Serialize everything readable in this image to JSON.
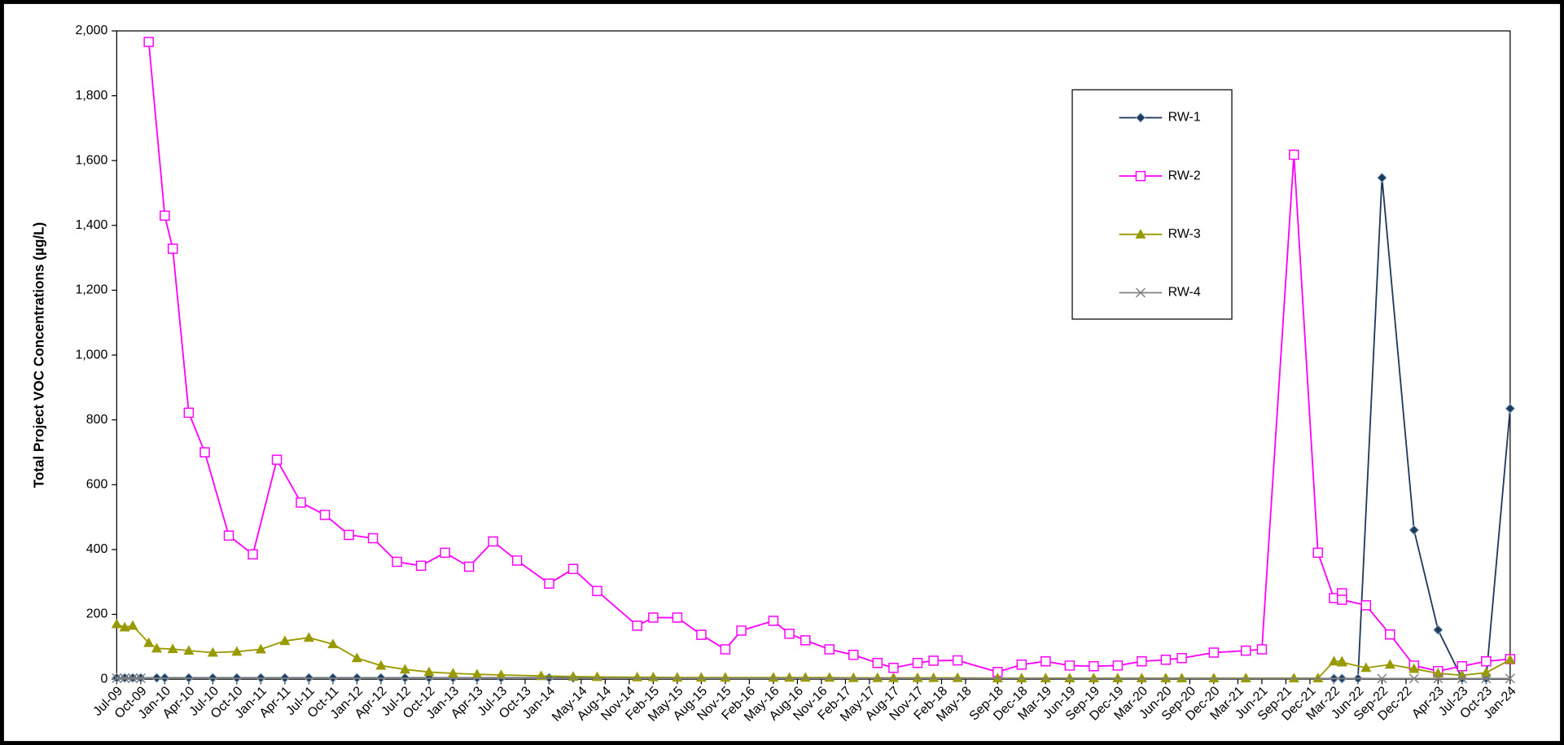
{
  "chart_data": {
    "type": "line",
    "y_label": "Total Project VOC Concentrations (µg/L)",
    "xlim": [
      "2009-07",
      "2024-01"
    ],
    "xticks": [
      {
        "value": "2009-07",
        "label": "Jul-09"
      },
      {
        "value": "2009-10",
        "label": "Oct-09"
      },
      {
        "value": "2010-01",
        "label": "Jan-10"
      },
      {
        "value": "2010-04",
        "label": "Apr-10"
      },
      {
        "value": "2010-07",
        "label": "Jul-10"
      },
      {
        "value": "2010-10",
        "label": "Oct-10"
      },
      {
        "value": "2011-01",
        "label": "Jan-11"
      },
      {
        "value": "2011-04",
        "label": "Apr-11"
      },
      {
        "value": "2011-07",
        "label": "Jul-11"
      },
      {
        "value": "2011-10",
        "label": "Oct-11"
      },
      {
        "value": "2012-01",
        "label": "Jan-12"
      },
      {
        "value": "2012-04",
        "label": "Apr-12"
      },
      {
        "value": "2012-07",
        "label": "Jul-12"
      },
      {
        "value": "2012-10",
        "label": "Oct-12"
      },
      {
        "value": "2013-01",
        "label": "Jan-13"
      },
      {
        "value": "2013-04",
        "label": "Apr-13"
      },
      {
        "value": "2013-07",
        "label": "Jul-13"
      },
      {
        "value": "2013-10",
        "label": "Oct-13"
      },
      {
        "value": "2014-01",
        "label": "Jan-14"
      },
      {
        "value": "2014-05",
        "label": "May-14"
      },
      {
        "value": "2014-08",
        "label": "Aug-14"
      },
      {
        "value": "2014-11",
        "label": "Nov-14"
      },
      {
        "value": "2015-02",
        "label": "Feb-15"
      },
      {
        "value": "2015-05",
        "label": "May-15"
      },
      {
        "value": "2015-08",
        "label": "Aug-15"
      },
      {
        "value": "2015-11",
        "label": "Nov-15"
      },
      {
        "value": "2016-02",
        "label": "Feb-16"
      },
      {
        "value": "2016-05",
        "label": "May-16"
      },
      {
        "value": "2016-08",
        "label": "Aug-16"
      },
      {
        "value": "2016-11",
        "label": "Nov-16"
      },
      {
        "value": "2017-02",
        "label": "Feb-17"
      },
      {
        "value": "2017-05",
        "label": "May-17"
      },
      {
        "value": "2017-08",
        "label": "Aug-17"
      },
      {
        "value": "2017-11",
        "label": "Nov-17"
      },
      {
        "value": "2018-02",
        "label": "Feb-18"
      },
      {
        "value": "2018-05",
        "label": "May-18"
      },
      {
        "value": "2018-09",
        "label": "Sep-18"
      },
      {
        "value": "2018-12",
        "label": "Dec-18"
      },
      {
        "value": "2019-03",
        "label": "Mar-19"
      },
      {
        "value": "2019-06",
        "label": "Jun-19"
      },
      {
        "value": "2019-09",
        "label": "Sep-19"
      },
      {
        "value": "2019-12",
        "label": "Dec-19"
      },
      {
        "value": "2020-03",
        "label": "Mar-20"
      },
      {
        "value": "2020-06",
        "label": "Jun-20"
      },
      {
        "value": "2020-09",
        "label": "Sep-20"
      },
      {
        "value": "2020-12",
        "label": "Dec-20"
      },
      {
        "value": "2021-03",
        "label": "Mar-21"
      },
      {
        "value": "2021-06",
        "label": "Jun-21"
      },
      {
        "value": "2021-09",
        "label": "Sep-21"
      },
      {
        "value": "2021-12",
        "label": "Dec-21"
      },
      {
        "value": "2022-03",
        "label": "Mar-22"
      },
      {
        "value": "2022-06",
        "label": "Jun-22"
      },
      {
        "value": "2022-09",
        "label": "Sep-22"
      },
      {
        "value": "2022-12",
        "label": "Dec-22"
      },
      {
        "value": "2023-04",
        "label": "Apr-23"
      },
      {
        "value": "2023-07",
        "label": "Jul-23"
      },
      {
        "value": "2023-10",
        "label": "Oct-23"
      },
      {
        "value": "2024-01",
        "label": "Jan-24"
      }
    ],
    "ylim": [
      0,
      2000
    ],
    "yticks": [
      0,
      200,
      400,
      600,
      800,
      {
        "value": 1000,
        "label": "1,000"
      },
      {
        "value": 1200,
        "label": "1,200"
      },
      {
        "value": 1400,
        "label": "1,400"
      },
      {
        "value": 1600,
        "label": "1,600"
      },
      {
        "value": 1800,
        "label": "1,800"
      },
      {
        "value": 2000,
        "label": "2,000"
      }
    ],
    "grid": false,
    "legend": "upper right",
    "series": [
      {
        "name": "RW-1",
        "color": "#1f3b5c",
        "marker": "diamond",
        "x": [
          "2009-07",
          "2009-08",
          "2009-09",
          "2009-10",
          "2009-12",
          "2010-01",
          "2010-04",
          "2010-07",
          "2010-10",
          "2011-01",
          "2011-04",
          "2011-07",
          "2011-10",
          "2012-01",
          "2012-04",
          "2012-07",
          "2012-10",
          "2013-01",
          "2013-04",
          "2013-07",
          "2014-01",
          "2014-04",
          "2022-03",
          "2022-03",
          "2022-04",
          "2022-06",
          "2022-09",
          "2023-01",
          "2023-04",
          "2023-07",
          "2023-10",
          "2024-01"
        ],
        "values": [
          4,
          4,
          4,
          4,
          4,
          4,
          4,
          4,
          4,
          4,
          4,
          4,
          4,
          4,
          4,
          4,
          4,
          4,
          4,
          4,
          4,
          4,
          2,
          2,
          2,
          2,
          1547,
          460,
          152,
          2,
          2,
          835
        ]
      },
      {
        "name": "RW-2",
        "color": "#ff00ff",
        "marker": "square",
        "x": [
          "2009-11",
          "2010-01",
          "2010-02",
          "2010-04",
          "2010-06",
          "2010-09",
          "2010-12",
          "2011-03",
          "2011-06",
          "2011-09",
          "2011-12",
          "2012-03",
          "2012-06",
          "2012-09",
          "2012-12",
          "2013-03",
          "2013-06",
          "2013-09",
          "2014-01",
          "2014-04",
          "2014-07",
          "2014-12",
          "2015-02",
          "2015-05",
          "2015-08",
          "2015-11",
          "2016-01",
          "2016-05",
          "2016-07",
          "2016-09",
          "2016-12",
          "2017-03",
          "2017-06",
          "2017-08",
          "2017-11",
          "2018-01",
          "2018-04",
          "2018-09",
          "2018-12",
          "2019-03",
          "2019-06",
          "2019-09",
          "2019-12",
          "2020-03",
          "2020-06",
          "2020-08",
          "2020-12",
          "2021-04",
          "2021-06",
          "2021-10",
          "2022-01",
          "2022-03",
          "2022-04",
          "2022-04",
          "2022-07",
          "2022-10",
          "2023-01",
          "2023-04",
          "2023-07",
          "2023-10",
          "2024-01"
        ],
        "values": [
          1966,
          1430,
          1328,
          822,
          700,
          443,
          385,
          677,
          545,
          507,
          445,
          435,
          362,
          350,
          390,
          347,
          425,
          366,
          295,
          340,
          272,
          165,
          190,
          190,
          137,
          92,
          150,
          180,
          140,
          120,
          92,
          75,
          50,
          35,
          50,
          57,
          58,
          22,
          45,
          55,
          42,
          40,
          42,
          55,
          60,
          65,
          82,
          88,
          92,
          1618,
          390,
          250,
          265,
          245,
          228,
          138,
          42,
          25,
          40,
          55,
          62
        ]
      },
      {
        "name": "RW-3",
        "color": "#999900",
        "marker": "triangle",
        "x": [
          "2009-07",
          "2009-08",
          "2009-09",
          "2009-11",
          "2009-12",
          "2010-02",
          "2010-04",
          "2010-07",
          "2010-10",
          "2011-01",
          "2011-04",
          "2011-07",
          "2011-10",
          "2012-01",
          "2012-04",
          "2012-07",
          "2012-10",
          "2013-01",
          "2013-04",
          "2013-07",
          "2013-12",
          "2014-04",
          "2014-07",
          "2014-12",
          "2015-02",
          "2015-05",
          "2015-08",
          "2015-11",
          "2016-05",
          "2016-07",
          "2016-09",
          "2016-12",
          "2017-03",
          "2017-06",
          "2017-08",
          "2017-11",
          "2018-01",
          "2018-04",
          "2018-09",
          "2018-12",
          "2019-03",
          "2019-06",
          "2019-09",
          "2019-12",
          "2020-03",
          "2020-06",
          "2020-08",
          "2020-12",
          "2021-04",
          "2021-10",
          "2022-01",
          "2022-03",
          "2022-04",
          "2022-04",
          "2022-07",
          "2022-10",
          "2023-01",
          "2023-04",
          "2023-07",
          "2023-10",
          "2024-01"
        ],
        "values": [
          170,
          160,
          165,
          112,
          95,
          93,
          88,
          82,
          85,
          92,
          118,
          128,
          108,
          65,
          42,
          30,
          22,
          18,
          15,
          13,
          10,
          8,
          7,
          6,
          6,
          5,
          5,
          5,
          5,
          5,
          5,
          5,
          4,
          4,
          4,
          4,
          4,
          4,
          3,
          3,
          3,
          3,
          3,
          3,
          3,
          3,
          3,
          3,
          3,
          3,
          3,
          55,
          55,
          52,
          35,
          45,
          32,
          18,
          12,
          20,
          60
        ]
      },
      {
        "name": "RW-4",
        "color": "#808080",
        "marker": "x",
        "x": [
          "2009-07",
          "2009-08",
          "2009-09",
          "2009-10",
          "2022-09",
          "2023-01",
          "2023-04",
          "2023-07",
          "2023-10",
          "2024-01"
        ],
        "values": [
          3,
          3,
          3,
          3,
          2,
          2,
          2,
          2,
          2,
          2
        ]
      }
    ]
  }
}
